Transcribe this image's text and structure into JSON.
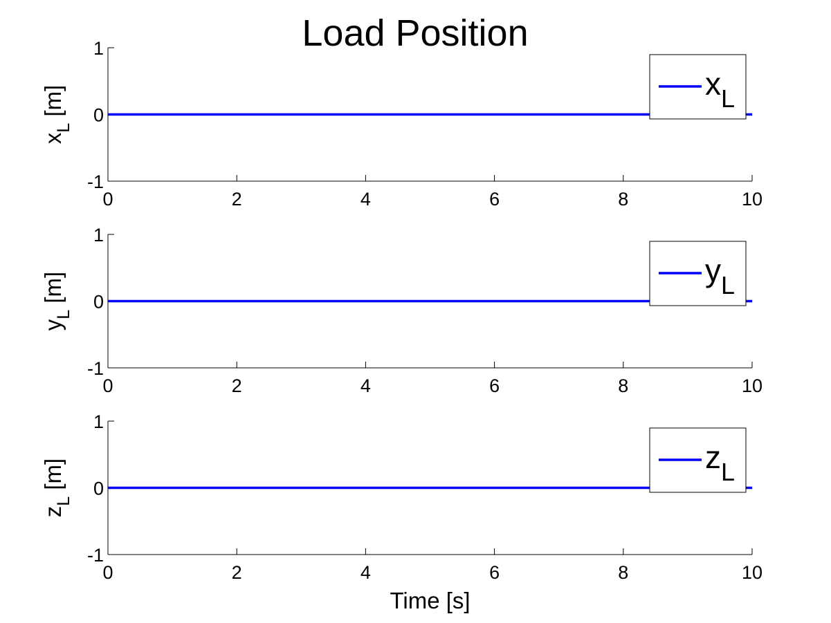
{
  "chart_data": {
    "title": "Load Position",
    "line_color": "#0000ff",
    "subplots": [
      {
        "type": "line",
        "ylabel_base": "x",
        "ylabel_sub": "L",
        "ylabel_unit": " [m]",
        "xlabel": "",
        "xlim": [
          0,
          10
        ],
        "ylim": [
          -1,
          1
        ],
        "xticks": [
          0,
          2,
          4,
          6,
          8,
          10
        ],
        "yticks": [
          -1,
          0,
          1
        ],
        "legend": {
          "base": "x",
          "sub": "L",
          "position": "top-right"
        },
        "series": [
          {
            "x": [
              0,
              10
            ],
            "y": [
              0,
              0
            ]
          }
        ]
      },
      {
        "type": "line",
        "ylabel_base": "y",
        "ylabel_sub": "L",
        "ylabel_unit": " [m]",
        "xlabel": "",
        "xlim": [
          0,
          10
        ],
        "ylim": [
          -1,
          1
        ],
        "xticks": [
          0,
          2,
          4,
          6,
          8,
          10
        ],
        "yticks": [
          -1,
          0,
          1
        ],
        "legend": {
          "base": "y",
          "sub": "L",
          "position": "top-right"
        },
        "series": [
          {
            "x": [
              0,
              10
            ],
            "y": [
              0,
              0
            ]
          }
        ]
      },
      {
        "type": "line",
        "ylabel_base": "z",
        "ylabel_sub": "L",
        "ylabel_unit": " [m]",
        "xlabel": "Time [s]",
        "xlim": [
          0,
          10
        ],
        "ylim": [
          -1,
          1
        ],
        "xticks": [
          0,
          2,
          4,
          6,
          8,
          10
        ],
        "yticks": [
          -1,
          0,
          1
        ],
        "legend": {
          "base": "z",
          "sub": "L",
          "position": "top-right"
        },
        "series": [
          {
            "x": [
              0,
              10
            ],
            "y": [
              0,
              0
            ]
          }
        ]
      }
    ]
  }
}
